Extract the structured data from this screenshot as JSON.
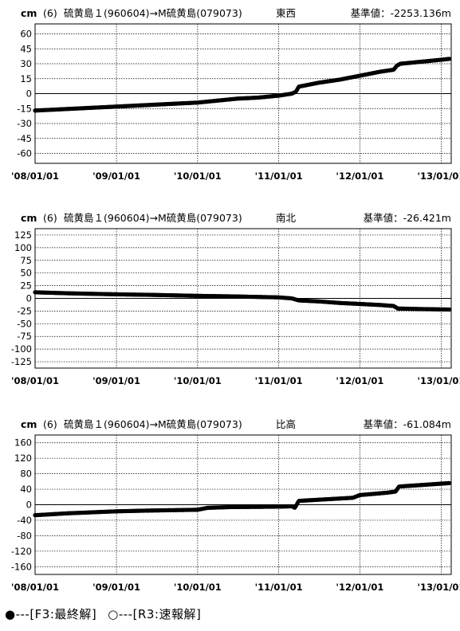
{
  "legend": {
    "final_symbol": "●",
    "final_text": "---[F3:最終解]",
    "rapid_symbol": "○",
    "rapid_text": "---[R3:速報解]"
  },
  "chart_data": [
    {
      "type": "scatter",
      "unit": "cm",
      "station": "(6)",
      "pair": "硫黄島１(960604)→M硫黄島(079073)",
      "component": "東西",
      "reference": "基準値：-2253.136m",
      "series_name": "F3:最終解",
      "color": "#000000",
      "xlim": [
        "2008-01-01",
        "2013-02-15"
      ],
      "ylim": [
        -70,
        70
      ],
      "yticks": [
        60,
        45,
        30,
        15,
        0,
        -15,
        -30,
        -45,
        -60
      ],
      "ytick_labels": [
        "60",
        "45",
        "30",
        "15",
        "0",
        "-15",
        "-30",
        "-45",
        "-60"
      ],
      "xticks": [
        "2008-01-01",
        "2009-01-01",
        "2010-01-01",
        "2011-01-01",
        "2012-01-01",
        "2013-01-01"
      ],
      "xtick_labels": [
        "'08/01/01",
        "'09/01/01",
        "'10/01/01",
        "'11/01/01",
        "'12/01/01",
        "'13/01/01"
      ],
      "x": [
        "2008-01-01",
        "2008-04-01",
        "2008-07-01",
        "2008-10-01",
        "2009-01-01",
        "2009-04-01",
        "2009-07-01",
        "2009-10-01",
        "2010-01-01",
        "2010-04-01",
        "2010-07-01",
        "2010-10-01",
        "2011-01-01",
        "2011-03-01",
        "2011-03-20",
        "2011-04-01",
        "2011-07-01",
        "2011-10-01",
        "2012-01-01",
        "2012-04-01",
        "2012-06-01",
        "2012-06-15",
        "2012-07-01",
        "2012-10-01",
        "2013-01-01",
        "2013-02-10"
      ],
      "y": [
        -17,
        -16,
        -15,
        -14,
        -13,
        -12,
        -11,
        -10,
        -9,
        -7,
        -5,
        -4,
        -2,
        0,
        2,
        7,
        11,
        14,
        18,
        22,
        24,
        28,
        30,
        32,
        34,
        35
      ]
    },
    {
      "type": "scatter",
      "unit": "cm",
      "station": "(6)",
      "pair": "硫黄島１(960604)→M硫黄島(079073)",
      "component": "南北",
      "reference": "基準値：-26.421m",
      "series_name": "F3:最終解",
      "color": "#000000",
      "xlim": [
        "2008-01-01",
        "2013-02-15"
      ],
      "ylim": [
        -137.5,
        137.5
      ],
      "yticks": [
        125,
        100,
        75,
        50,
        25,
        0,
        -25,
        -50,
        -75,
        -100,
        -125
      ],
      "ytick_labels": [
        "125",
        "100",
        "75",
        "50",
        "25",
        "0",
        "-25",
        "-50",
        "-75",
        "-100",
        "-125"
      ],
      "xticks": [
        "2008-01-01",
        "2009-01-01",
        "2010-01-01",
        "2011-01-01",
        "2012-01-01",
        "2013-01-01"
      ],
      "xtick_labels": [
        "'08/01/01",
        "'09/01/01",
        "'10/01/01",
        "'11/01/01",
        "'12/01/01",
        "'13/01/01"
      ],
      "x": [
        "2008-01-01",
        "2008-06-01",
        "2009-01-01",
        "2009-06-01",
        "2010-01-01",
        "2010-06-01",
        "2011-01-01",
        "2011-03-01",
        "2011-04-01",
        "2011-07-01",
        "2011-10-01",
        "2012-01-01",
        "2012-04-01",
        "2012-06-01",
        "2012-06-20",
        "2012-10-01",
        "2013-02-10"
      ],
      "y": [
        12,
        10,
        8,
        7,
        5,
        4,
        2,
        0,
        -4,
        -6,
        -9,
        -11,
        -13,
        -15,
        -20,
        -21,
        -22
      ]
    },
    {
      "type": "scatter",
      "unit": "cm",
      "station": "(6)",
      "pair": "硫黄島１(960604)→M硫黄島(079073)",
      "component": "比高",
      "reference": "基準値：-61.084m",
      "series_name": "F3:最終解",
      "color": "#000000",
      "xlim": [
        "2008-01-01",
        "2013-02-15"
      ],
      "ylim": [
        -180,
        180
      ],
      "yticks": [
        160,
        120,
        80,
        40,
        0,
        -40,
        -80,
        -120,
        -160
      ],
      "ytick_labels": [
        "160",
        "120",
        "80",
        "40",
        "0",
        "-40",
        "-80",
        "-120",
        "-160"
      ],
      "xticks": [
        "2008-01-01",
        "2009-01-01",
        "2010-01-01",
        "2011-01-01",
        "2012-01-01",
        "2013-01-01"
      ],
      "xtick_labels": [
        "'08/01/01",
        "'09/01/01",
        "'10/01/01",
        "'11/01/01",
        "'12/01/01",
        "'13/01/01"
      ],
      "x": [
        "2008-01-01",
        "2008-06-01",
        "2009-01-01",
        "2009-06-01",
        "2010-01-01",
        "2010-02-15",
        "2010-06-01",
        "2011-01-01",
        "2011-03-01",
        "2011-03-15",
        "2011-04-01",
        "2011-10-01",
        "2011-12-01",
        "2012-01-01",
        "2012-05-01",
        "2012-06-10",
        "2012-06-25",
        "2013-02-10"
      ],
      "y": [
        -27,
        -22,
        -17,
        -15,
        -13,
        -8,
        -6,
        -5,
        -4,
        -8,
        10,
        16,
        18,
        25,
        31,
        34,
        47,
        56
      ]
    }
  ]
}
